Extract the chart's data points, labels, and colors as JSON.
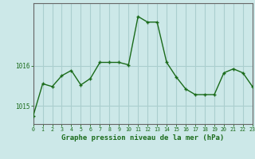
{
  "x": [
    0,
    1,
    2,
    3,
    4,
    5,
    6,
    7,
    8,
    9,
    10,
    11,
    12,
    13,
    14,
    15,
    16,
    17,
    18,
    19,
    20,
    21,
    22,
    23
  ],
  "y": [
    1014.75,
    1015.55,
    1015.48,
    1015.75,
    1015.88,
    1015.52,
    1015.68,
    1016.08,
    1016.08,
    1016.08,
    1016.02,
    1017.22,
    1017.08,
    1017.08,
    1016.08,
    1015.72,
    1015.42,
    1015.28,
    1015.28,
    1015.28,
    1015.82,
    1015.92,
    1015.82,
    1015.48
  ],
  "line_color": "#1a6b1a",
  "marker_color": "#1a6b1a",
  "bg_color": "#cce8e8",
  "grid_color": "#aacece",
  "axis_color": "#666666",
  "xlabel": "Graphe pression niveau de la mer (hPa)",
  "xlabel_color": "#1a6b1a",
  "tick_label_color": "#1a6b1a",
  "ytick_labels": [
    "1016",
    "1015"
  ],
  "ytick_values": [
    1016,
    1015
  ],
  "ylim": [
    1014.55,
    1017.55
  ],
  "xlim": [
    0,
    23
  ]
}
